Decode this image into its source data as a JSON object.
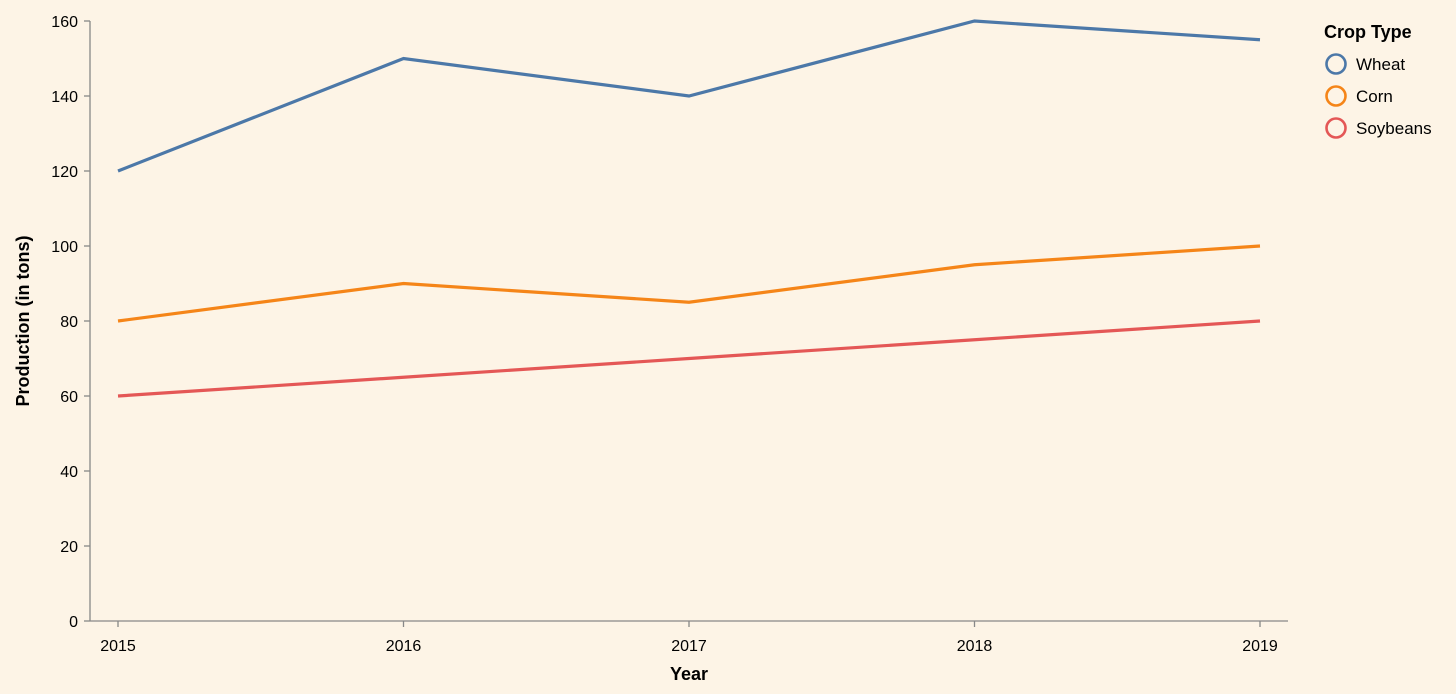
{
  "chart_data": {
    "type": "line",
    "x": [
      "2015",
      "2016",
      "2017",
      "2018",
      "2019"
    ],
    "series": [
      {
        "name": "Wheat",
        "values": [
          120,
          150,
          140,
          160,
          155
        ],
        "color": "#4c78a8"
      },
      {
        "name": "Corn",
        "values": [
          80,
          90,
          85,
          95,
          100
        ],
        "color": "#f58518"
      },
      {
        "name": "Soybeans",
        "values": [
          60,
          65,
          70,
          75,
          80
        ],
        "color": "#e45756"
      }
    ],
    "xlabel": "Year",
    "ylabel": "Production (in tons)",
    "ylim": [
      0,
      160
    ],
    "yticks": [
      0,
      20,
      40,
      60,
      80,
      100,
      120,
      140,
      160
    ],
    "grid": false,
    "legend": {
      "title": "Crop Type",
      "placement": "right"
    },
    "background": "#fdf4e6"
  }
}
